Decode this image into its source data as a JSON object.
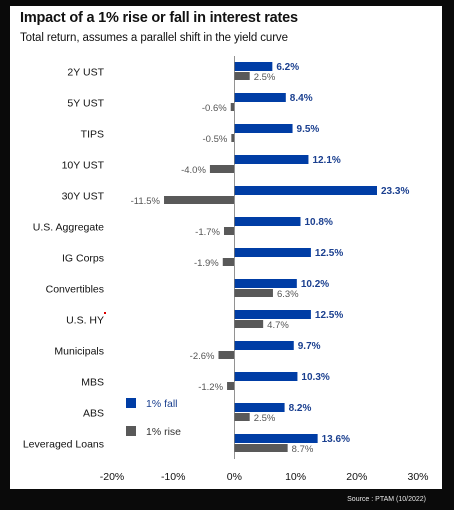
{
  "title": "Impact of a 1% rise or fall in interest rates",
  "subtitle": "Total return, assumes a parallel shift in the yield curve",
  "source": "Source : PTAM (10/2022)",
  "colors": {
    "fall": "#003da5",
    "rise": "#595959",
    "fall_label": "#1a3f8f",
    "rise_label": "#555555"
  },
  "chart_data": {
    "type": "bar",
    "orientation": "horizontal",
    "categories": [
      "2Y UST",
      "5Y UST",
      "TIPS",
      "10Y UST",
      "30Y UST",
      "U.S. Aggregate",
      "IG Corps",
      "Convertibles",
      "U.S. HY",
      "Municipals",
      "MBS",
      "ABS",
      "Leveraged Loans"
    ],
    "series": [
      {
        "name": "1% fall",
        "values": [
          6.2,
          8.4,
          9.5,
          12.1,
          23.3,
          10.8,
          12.5,
          10.2,
          12.5,
          9.7,
          10.3,
          8.2,
          13.6
        ]
      },
      {
        "name": "1% rise",
        "values": [
          2.5,
          -0.6,
          -0.5,
          -4.0,
          -11.5,
          -1.7,
          -1.9,
          6.3,
          4.7,
          -2.6,
          -1.2,
          2.5,
          8.7
        ]
      }
    ],
    "xlim": [
      -20,
      30
    ],
    "xticks": [
      -20,
      -10,
      0,
      10,
      20,
      30
    ],
    "xtick_labels": [
      "-20%",
      "-10%",
      "0%",
      "10%",
      "20%",
      "30%"
    ],
    "legend_position": "bottom-left",
    "grid": false
  }
}
